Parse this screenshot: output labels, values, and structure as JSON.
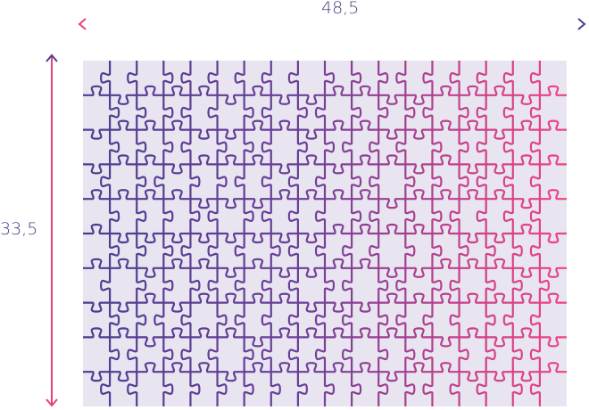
{
  "dimensions": {
    "width_label": "48,5",
    "height_label": "33,5"
  },
  "puzzle": {
    "columns": 18,
    "rows": 10
  },
  "colors": {
    "purple": "#4f3b8f",
    "pink": "#e8407f",
    "board": "#e8e5f1",
    "text": "#4b3f7e"
  }
}
